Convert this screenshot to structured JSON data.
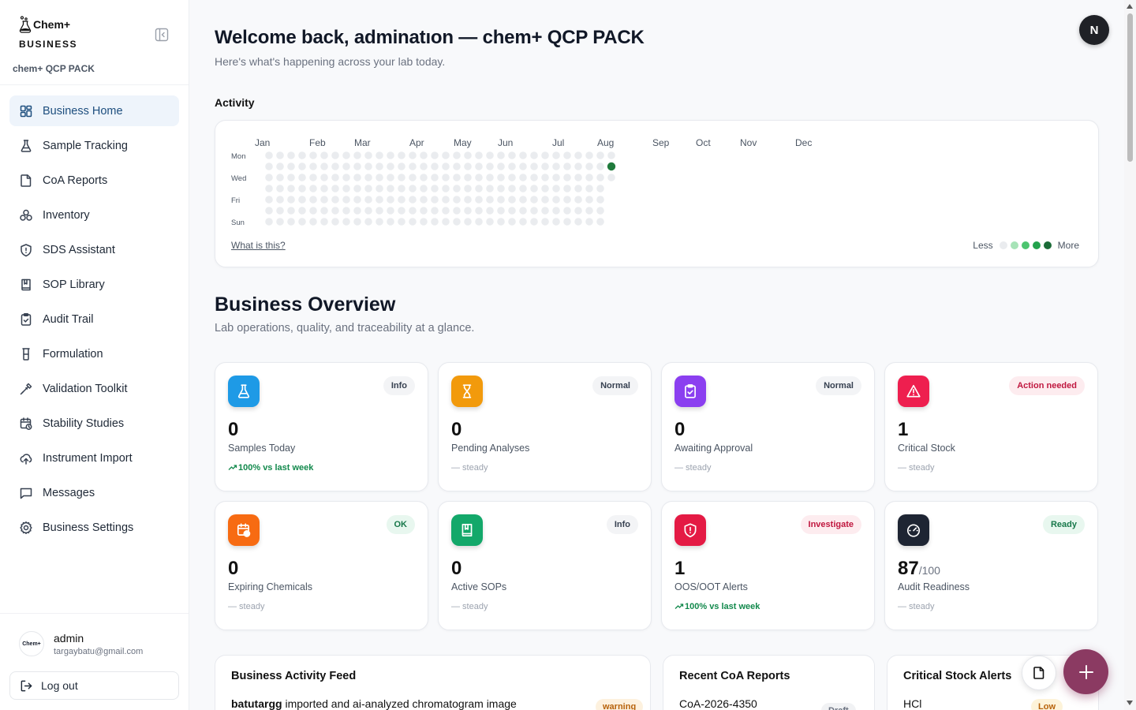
{
  "brand": {
    "name": "Chem+",
    "sub": "BUSINESS",
    "org": "chem+ QCP PACK"
  },
  "sidebar": {
    "items": [
      {
        "label": "Business Home",
        "icon": "dashboard-icon",
        "active": true
      },
      {
        "label": "Sample Tracking",
        "icon": "flask-icon"
      },
      {
        "label": "CoA Reports",
        "icon": "file-icon"
      },
      {
        "label": "Inventory",
        "icon": "boxes-icon"
      },
      {
        "label": "SDS Assistant",
        "icon": "shield-icon"
      },
      {
        "label": "SOP Library",
        "icon": "book-icon"
      },
      {
        "label": "Audit Trail",
        "icon": "clipboard-check-icon"
      },
      {
        "label": "Formulation",
        "icon": "beaker-icon"
      },
      {
        "label": "Validation Toolkit",
        "icon": "pipette-icon"
      },
      {
        "label": "Stability Studies",
        "icon": "calendar-clock-icon"
      },
      {
        "label": "Instrument Import",
        "icon": "cloud-upload-icon"
      },
      {
        "label": "Messages",
        "icon": "message-icon"
      },
      {
        "label": "Business Settings",
        "icon": "gear-icon"
      }
    ]
  },
  "user": {
    "name": "admin",
    "email": "targaybatu@gmail.com",
    "avatar_text": "Chem+"
  },
  "logout_label": "Log out",
  "header": {
    "welcome": "Welcome back, adminatıon — chem+ QCP PACK",
    "subtitle": "Here's what's happening across your lab today.",
    "profile_initial": "N"
  },
  "activity": {
    "title": "Activity",
    "months": [
      "Jan",
      "Feb",
      "Mar",
      "Apr",
      "May",
      "Jun",
      "Jul",
      "Aug",
      "Sep",
      "Oct",
      "Nov",
      "Dec"
    ],
    "day_labels": [
      "Mon",
      "Wed",
      "Fri",
      "Sun"
    ],
    "what_link": "What is this?",
    "legend_less": "Less",
    "legend_more": "More",
    "legend_colors": [
      "#eaecef",
      "#a7e3b7",
      "#4cc46f",
      "#23a24c",
      "#1b6b37"
    ],
    "empty_color": "#eaecef",
    "active_color": "#1f7a3c",
    "weeks_total": 32,
    "last_week_days": 3,
    "active_cells": [
      {
        "week": 32,
        "day": 1
      }
    ]
  },
  "overview": {
    "title": "Business Overview",
    "subtitle": "Lab operations, quality, and traceability at a glance."
  },
  "stats": [
    {
      "value": "0",
      "suffix": "",
      "label": "Samples Today",
      "badge": "Info",
      "badge_type": "neutral",
      "trend": "100% vs last week",
      "trend_up": true,
      "icon": "flask-icon",
      "color": "#1e9ae6"
    },
    {
      "value": "0",
      "suffix": "",
      "label": "Pending Analyses",
      "badge": "Normal",
      "badge_type": "neutral",
      "trend": "— steady",
      "trend_up": false,
      "icon": "hourglass-icon",
      "color": "#f29a0c"
    },
    {
      "value": "0",
      "suffix": "",
      "label": "Awaiting Approval",
      "badge": "Normal",
      "badge_type": "neutral",
      "trend": "— steady",
      "trend_up": false,
      "icon": "clipboard-check-icon",
      "color": "#8b3ff0"
    },
    {
      "value": "1",
      "suffix": "",
      "label": "Critical Stock",
      "badge": "Action needed",
      "badge_type": "danger",
      "trend": "— steady",
      "trend_up": false,
      "icon": "warning-icon",
      "color": "#ee1f4f"
    },
    {
      "value": "0",
      "suffix": "",
      "label": "Expiring Chemicals",
      "badge": "OK",
      "badge_type": "success",
      "trend": "— steady",
      "trend_up": false,
      "icon": "calendar-clock-icon",
      "color": "#f76b12"
    },
    {
      "value": "0",
      "suffix": "",
      "label": "Active SOPs",
      "badge": "Info",
      "badge_type": "neutral",
      "trend": "— steady",
      "trend_up": false,
      "icon": "book-icon",
      "color": "#13a86a"
    },
    {
      "value": "1",
      "suffix": "",
      "label": "OOS/OOT Alerts",
      "badge": "Investigate",
      "badge_type": "danger",
      "trend": "100% vs last week",
      "trend_up": true,
      "icon": "shield-alert-icon",
      "color": "#e41a44"
    },
    {
      "value": "87",
      "suffix": "/100",
      "label": "Audit Readiness",
      "badge": "Ready",
      "badge_type": "success",
      "trend": "— steady",
      "trend_up": false,
      "icon": "gauge-icon",
      "color": "#1e2533"
    }
  ],
  "panels": {
    "feed": {
      "title": "Business Activity Feed",
      "user": "batutargg",
      "text": " imported and ai-analyzed chromatogram image",
      "badge": "warning"
    },
    "coa": {
      "title": "Recent CoA Reports",
      "item": "CoA-2026-4350",
      "badge": "Draft"
    },
    "stock": {
      "title": "Critical Stock Alerts",
      "item": "HCl",
      "badge": "Low"
    }
  },
  "colors": {
    "accent": "#1d4e7e",
    "fab": "#8b3a62"
  }
}
